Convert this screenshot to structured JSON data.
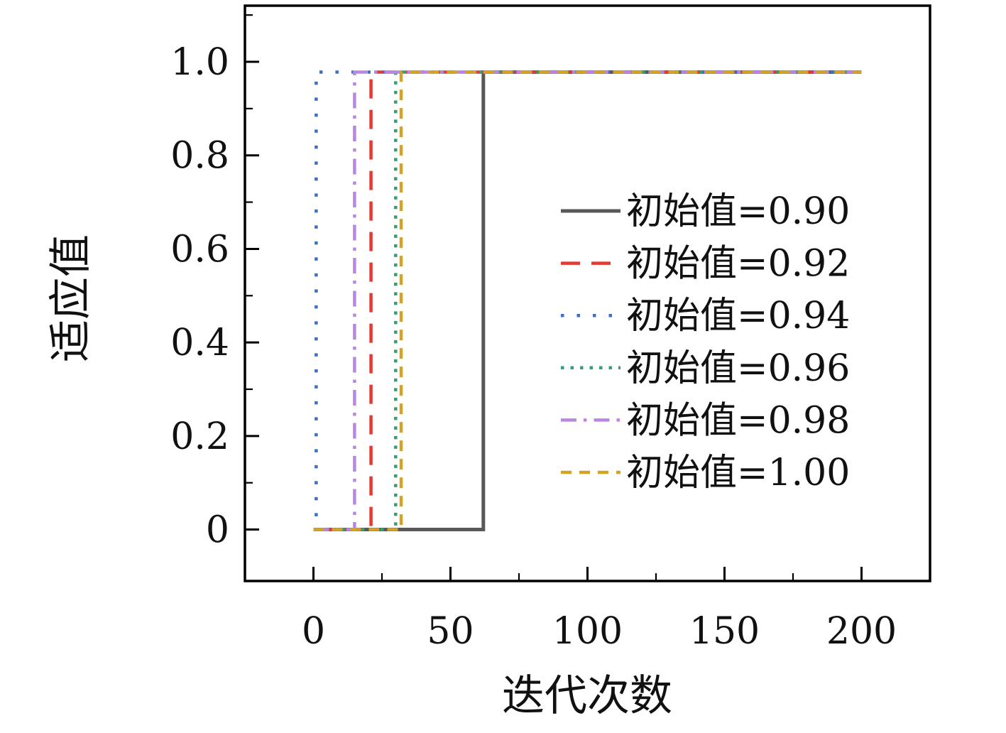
{
  "chart_data": {
    "type": "line",
    "title": "",
    "xlabel": "迭代次数",
    "ylabel": "适应值",
    "xlim": [
      -25,
      225
    ],
    "ylim": [
      -0.11,
      1.12
    ],
    "xticks": [
      0,
      50,
      100,
      150,
      200
    ],
    "yticks": [
      0,
      0.2,
      0.4,
      0.6,
      0.8,
      1.0
    ],
    "x_minor_ticks": [
      25,
      75,
      125,
      175
    ],
    "y_minor_ticks": [
      0.1,
      0.3,
      0.5,
      0.7,
      0.9,
      1.1
    ],
    "grid": false,
    "legend_position": "center-right",
    "frame_color": "#000000",
    "start_value": 0,
    "converged_value": 0.978,
    "x_start": 0,
    "x_end": 200,
    "series": [
      {
        "name": "初始值=0.90",
        "color": "#595959",
        "style": "solid",
        "jump_iteration": 62,
        "points": [
          [
            0,
            0
          ],
          [
            62,
            0
          ],
          [
            62,
            0.978
          ],
          [
            200,
            0.978
          ]
        ]
      },
      {
        "name": "初始值=0.92",
        "color": "#e23b33",
        "style": "dashed",
        "jump_iteration": 21,
        "points": [
          [
            0,
            0
          ],
          [
            21,
            0
          ],
          [
            21,
            0.978
          ],
          [
            200,
            0.978
          ]
        ]
      },
      {
        "name": "初始值=0.94",
        "color": "#3f6fc4",
        "style": "dotted-sparse",
        "jump_iteration": 1,
        "points": [
          [
            0,
            0
          ],
          [
            1,
            0
          ],
          [
            1,
            0.978
          ],
          [
            200,
            0.978
          ]
        ]
      },
      {
        "name": "初始值=0.96",
        "color": "#33a06f",
        "style": "dotted",
        "jump_iteration": 30,
        "points": [
          [
            0,
            0
          ],
          [
            30,
            0
          ],
          [
            30,
            0.978
          ],
          [
            200,
            0.978
          ]
        ]
      },
      {
        "name": "初始值=0.98",
        "color": "#b987e3",
        "style": "dash-dot",
        "jump_iteration": 15,
        "points": [
          [
            0,
            0
          ],
          [
            15,
            0
          ],
          [
            15,
            0.978
          ],
          [
            200,
            0.978
          ]
        ]
      },
      {
        "name": "初始值=1.00",
        "color": "#d4a12b",
        "style": "dashed-short",
        "jump_iteration": 32,
        "points": [
          [
            0,
            0
          ],
          [
            32,
            0
          ],
          [
            32,
            0.978
          ],
          [
            200,
            0.978
          ]
        ]
      }
    ]
  }
}
